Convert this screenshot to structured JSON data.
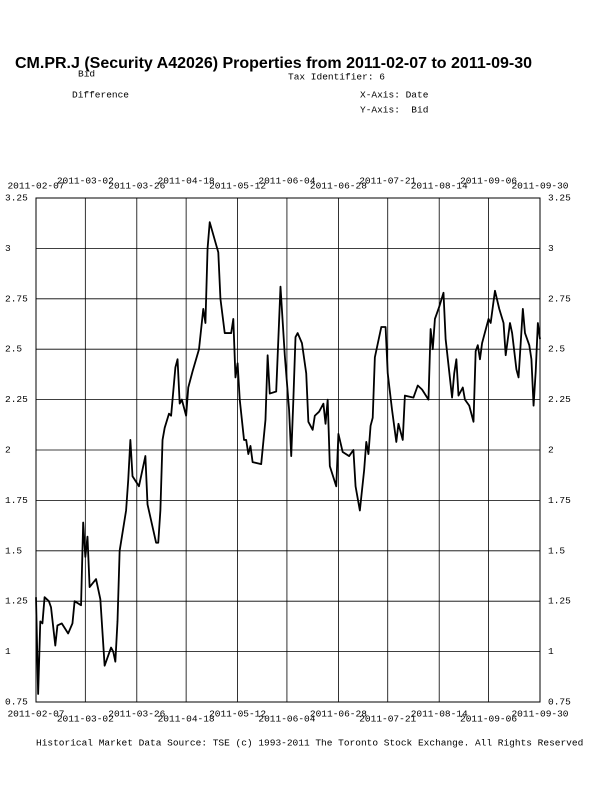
{
  "chart_data": {
    "type": "line",
    "title": "CM.PR.J (Security A42026) Properties from 2011-02-07 to 2011-09-30",
    "series_label": "Bid",
    "tax_identifier": "Tax Identifier: 6",
    "subtitle": "Difference",
    "x_axis_label": "X-Axis: Date",
    "y_axis_label": "Y-Axis:  Bid",
    "source": "Historical Market Data Source: TSE (c) 1993-2011 The Toronto Stock Exchange. All Rights Reserved",
    "xlim": [
      "2011-02-07",
      "2011-09-30"
    ],
    "xticks": [
      "2011-02-07",
      "2011-03-02",
      "2011-03-26",
      "2011-04-18",
      "2011-05-12",
      "2011-06-04",
      "2011-06-28",
      "2011-07-21",
      "2011-08-14",
      "2011-09-06",
      "2011-09-30"
    ],
    "ylim": [
      0.75,
      3.25
    ],
    "yticks": [
      0.75,
      1,
      1.25,
      1.5,
      1.75,
      2,
      2.25,
      2.5,
      2.75,
      3,
      3.25
    ],
    "grid": true,
    "color": "#000000",
    "x": [
      "2011-02-07",
      "2011-02-08",
      "2011-02-09",
      "2011-02-10",
      "2011-02-11",
      "2011-02-13",
      "2011-02-14",
      "2011-02-16",
      "2011-02-17",
      "2011-02-19",
      "2011-02-22",
      "2011-02-24",
      "2011-02-25",
      "2011-02-28",
      "2011-03-01",
      "2011-03-02",
      "2011-03-03",
      "2011-03-04",
      "2011-03-07",
      "2011-03-09",
      "2011-03-11",
      "2011-03-14",
      "2011-03-15",
      "2011-03-16",
      "2011-03-17",
      "2011-03-18",
      "2011-03-21",
      "2011-03-22",
      "2011-03-23",
      "2011-03-24",
      "2011-03-27",
      "2011-03-30",
      "2011-03-31",
      "2011-04-04",
      "2011-04-05",
      "2011-04-06",
      "2011-04-07",
      "2011-04-08",
      "2011-04-10",
      "2011-04-11",
      "2011-04-13",
      "2011-04-14",
      "2011-04-15",
      "2011-04-16",
      "2011-04-18",
      "2011-04-19",
      "2011-04-21",
      "2011-04-24",
      "2011-04-26",
      "2011-04-27",
      "2011-04-28",
      "2011-04-29",
      "2011-05-03",
      "2011-05-04",
      "2011-05-06",
      "2011-05-09",
      "2011-05-10",
      "2011-05-11",
      "2011-05-12",
      "2011-05-13",
      "2011-05-15",
      "2011-05-16",
      "2011-05-17",
      "2011-05-18",
      "2011-05-19",
      "2011-05-23",
      "2011-05-25",
      "2011-05-26",
      "2011-05-27",
      "2011-05-30",
      "2011-06-01",
      "2011-06-03",
      "2011-06-05",
      "2011-06-06",
      "2011-06-07",
      "2011-06-08",
      "2011-06-09",
      "2011-06-11",
      "2011-06-13",
      "2011-06-14",
      "2011-06-16",
      "2011-06-17",
      "2011-06-19",
      "2011-06-21",
      "2011-06-22",
      "2011-06-23",
      "2011-06-24",
      "2011-06-27",
      "2011-06-28",
      "2011-06-30",
      "2011-07-03",
      "2011-07-05",
      "2011-07-06",
      "2011-07-08",
      "2011-07-10",
      "2011-07-11",
      "2011-07-12",
      "2011-07-13",
      "2011-07-14",
      "2011-07-15",
      "2011-07-18",
      "2011-07-20",
      "2011-07-21",
      "2011-07-23",
      "2011-07-25",
      "2011-07-26",
      "2011-07-28",
      "2011-07-29",
      "2011-08-02",
      "2011-08-04",
      "2011-08-06",
      "2011-08-09",
      "2011-08-10",
      "2011-08-11",
      "2011-08-12",
      "2011-08-14",
      "2011-08-16",
      "2011-08-17",
      "2011-08-20",
      "2011-08-21",
      "2011-08-22",
      "2011-08-23",
      "2011-08-25",
      "2011-08-26",
      "2011-08-28",
      "2011-08-30",
      "2011-08-31",
      "2011-09-01",
      "2011-09-02",
      "2011-09-03",
      "2011-09-06",
      "2011-09-07",
      "2011-09-09",
      "2011-09-11",
      "2011-09-13",
      "2011-09-14",
      "2011-09-16",
      "2011-09-17",
      "2011-09-19",
      "2011-09-20",
      "2011-09-22",
      "2011-09-23",
      "2011-09-25",
      "2011-09-26",
      "2011-09-27",
      "2011-09-28",
      "2011-09-29",
      "2011-09-30"
    ],
    "values": [
      1.27,
      0.79,
      1.15,
      1.14,
      1.27,
      1.25,
      1.22,
      1.03,
      1.13,
      1.14,
      1.09,
      1.14,
      1.25,
      1.23,
      1.64,
      1.47,
      1.57,
      1.32,
      1.36,
      1.26,
      0.93,
      1.02,
      1.0,
      0.95,
      1.15,
      1.5,
      1.7,
      1.85,
      2.05,
      1.87,
      1.82,
      1.97,
      1.73,
      1.54,
      1.54,
      1.7,
      2.05,
      2.11,
      2.18,
      2.17,
      2.41,
      2.45,
      2.23,
      2.25,
      2.17,
      2.31,
      2.39,
      2.5,
      2.7,
      2.63,
      3.0,
      3.13,
      2.98,
      2.75,
      2.58,
      2.58,
      2.65,
      2.36,
      2.43,
      2.25,
      2.05,
      2.05,
      1.98,
      2.02,
      1.94,
      1.93,
      2.15,
      2.47,
      2.28,
      2.29,
      2.81,
      2.47,
      2.2,
      1.97,
      2.25,
      2.56,
      2.58,
      2.53,
      2.38,
      2.14,
      2.1,
      2.17,
      2.19,
      2.23,
      2.13,
      2.25,
      1.92,
      1.82,
      2.08,
      1.99,
      1.97,
      2.0,
      1.82,
      1.7,
      1.9,
      2.04,
      1.98,
      2.12,
      2.16,
      2.46,
      2.61,
      2.61,
      2.38,
      2.2,
      2.04,
      2.13,
      2.05,
      2.27,
      2.26,
      2.32,
      2.3,
      2.25,
      2.6,
      2.5,
      2.65,
      2.71,
      2.78,
      2.55,
      2.26,
      2.38,
      2.45,
      2.27,
      2.31,
      2.25,
      2.22,
      2.14,
      2.49,
      2.52,
      2.45,
      2.53,
      2.65,
      2.63,
      2.79,
      2.7,
      2.63,
      2.47,
      2.63,
      2.58,
      2.4,
      2.36,
      2.7,
      2.58,
      2.52,
      2.45,
      2.22,
      2.39,
      2.63,
      2.55
    ]
  }
}
